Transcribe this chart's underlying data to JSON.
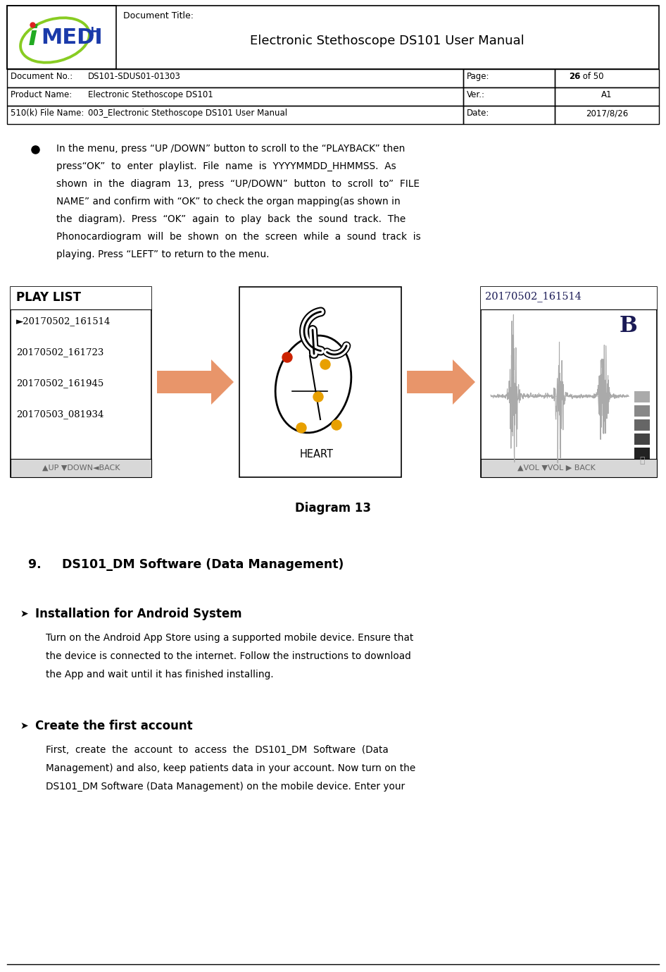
{
  "page_width": 9.46,
  "page_height": 13.79,
  "bg_color": "#ffffff",
  "header": {
    "doc_title_label": "Document Title:",
    "doc_title": "Electronic Stethoscope DS101 User Manual",
    "doc_no_label": "Document No.:",
    "doc_no": "DS101-SDUS01-01303",
    "page_label": "Page:",
    "page_bold": "26",
    "page_rest": " of 50",
    "product_label": "Product Name:",
    "product_name": "Electronic Stethoscope DS101",
    "ver_label": "Ver.:",
    "ver_value": "A1",
    "file_label": "510(k) File Name:",
    "file_name": "003_Electronic Stethoscope DS101 User Manual",
    "date_label": "Date:",
    "date_value": "2017/8/26"
  },
  "bullet_lines": [
    "In the menu, press “UP /DOWN” button to scroll to the “PLAYBACK” then",
    "press“OK”  to  enter  playlist.  File  name  is  YYYYMMDD_HHMMSS.  As",
    "shown  in  the  diagram  13,  press  “UP/DOWN”  button  to  scroll  to”  FILE",
    "NAME” and confirm with “OK” to check the organ mapping(as shown in",
    "the  diagram).  Press  “OK”  again  to  play  back  the  sound  track.  The",
    "Phonocardiogram  will  be  shown  on  the  screen  while  a  sound  track  is",
    "playing. Press “LEFT” to return to the menu."
  ],
  "diagram_label": "Diagram 13",
  "playlist": {
    "title": "PLAY LIST",
    "files": [
      "►20170502_161514",
      "20170502_161723",
      "20170502_161945",
      "20170503_081934"
    ],
    "footer": "▲UP ▼DOWN◄BACK"
  },
  "heart_label": "HEART",
  "playback": {
    "title": "20170502_161514",
    "channel": "B",
    "footer": "▲VOL ▼VOL ▶ BACK"
  },
  "section9_title": "9.   DS101_DM Software (Data Management)",
  "subsection_android": "Installation for Android System",
  "android_lines": [
    "Turn on the Android App Store using a supported mobile device. Ensure that",
    "the device is connected to the internet. Follow the instructions to download",
    "the App and wait until it has finished installing."
  ],
  "subsection_account": "Create the first account",
  "account_lines": [
    "First,  create  the  account  to  access  the  DS101_DM  Software  (Data",
    "Management) and also, keep patients data in your account. Now turn on the",
    "DS101_DM Software (Data Management) on the mobile device. Enter your"
  ],
  "logo": {
    "i_color": "#22aa22",
    "medi_color": "#1a3aaa",
    "plus_color": "#1a3aaa",
    "ellipse_color": "#88cc22",
    "dot_color": "#dd2222"
  },
  "arrow_color": "#e8956a",
  "vol_bar_colors": [
    "#aaaaaa",
    "#888888",
    "#666666",
    "#444444",
    "#222222"
  ],
  "waveform_color": "#aaaaaa",
  "footer_bg": "#d8d8d8",
  "footer_text_color": "#666666"
}
